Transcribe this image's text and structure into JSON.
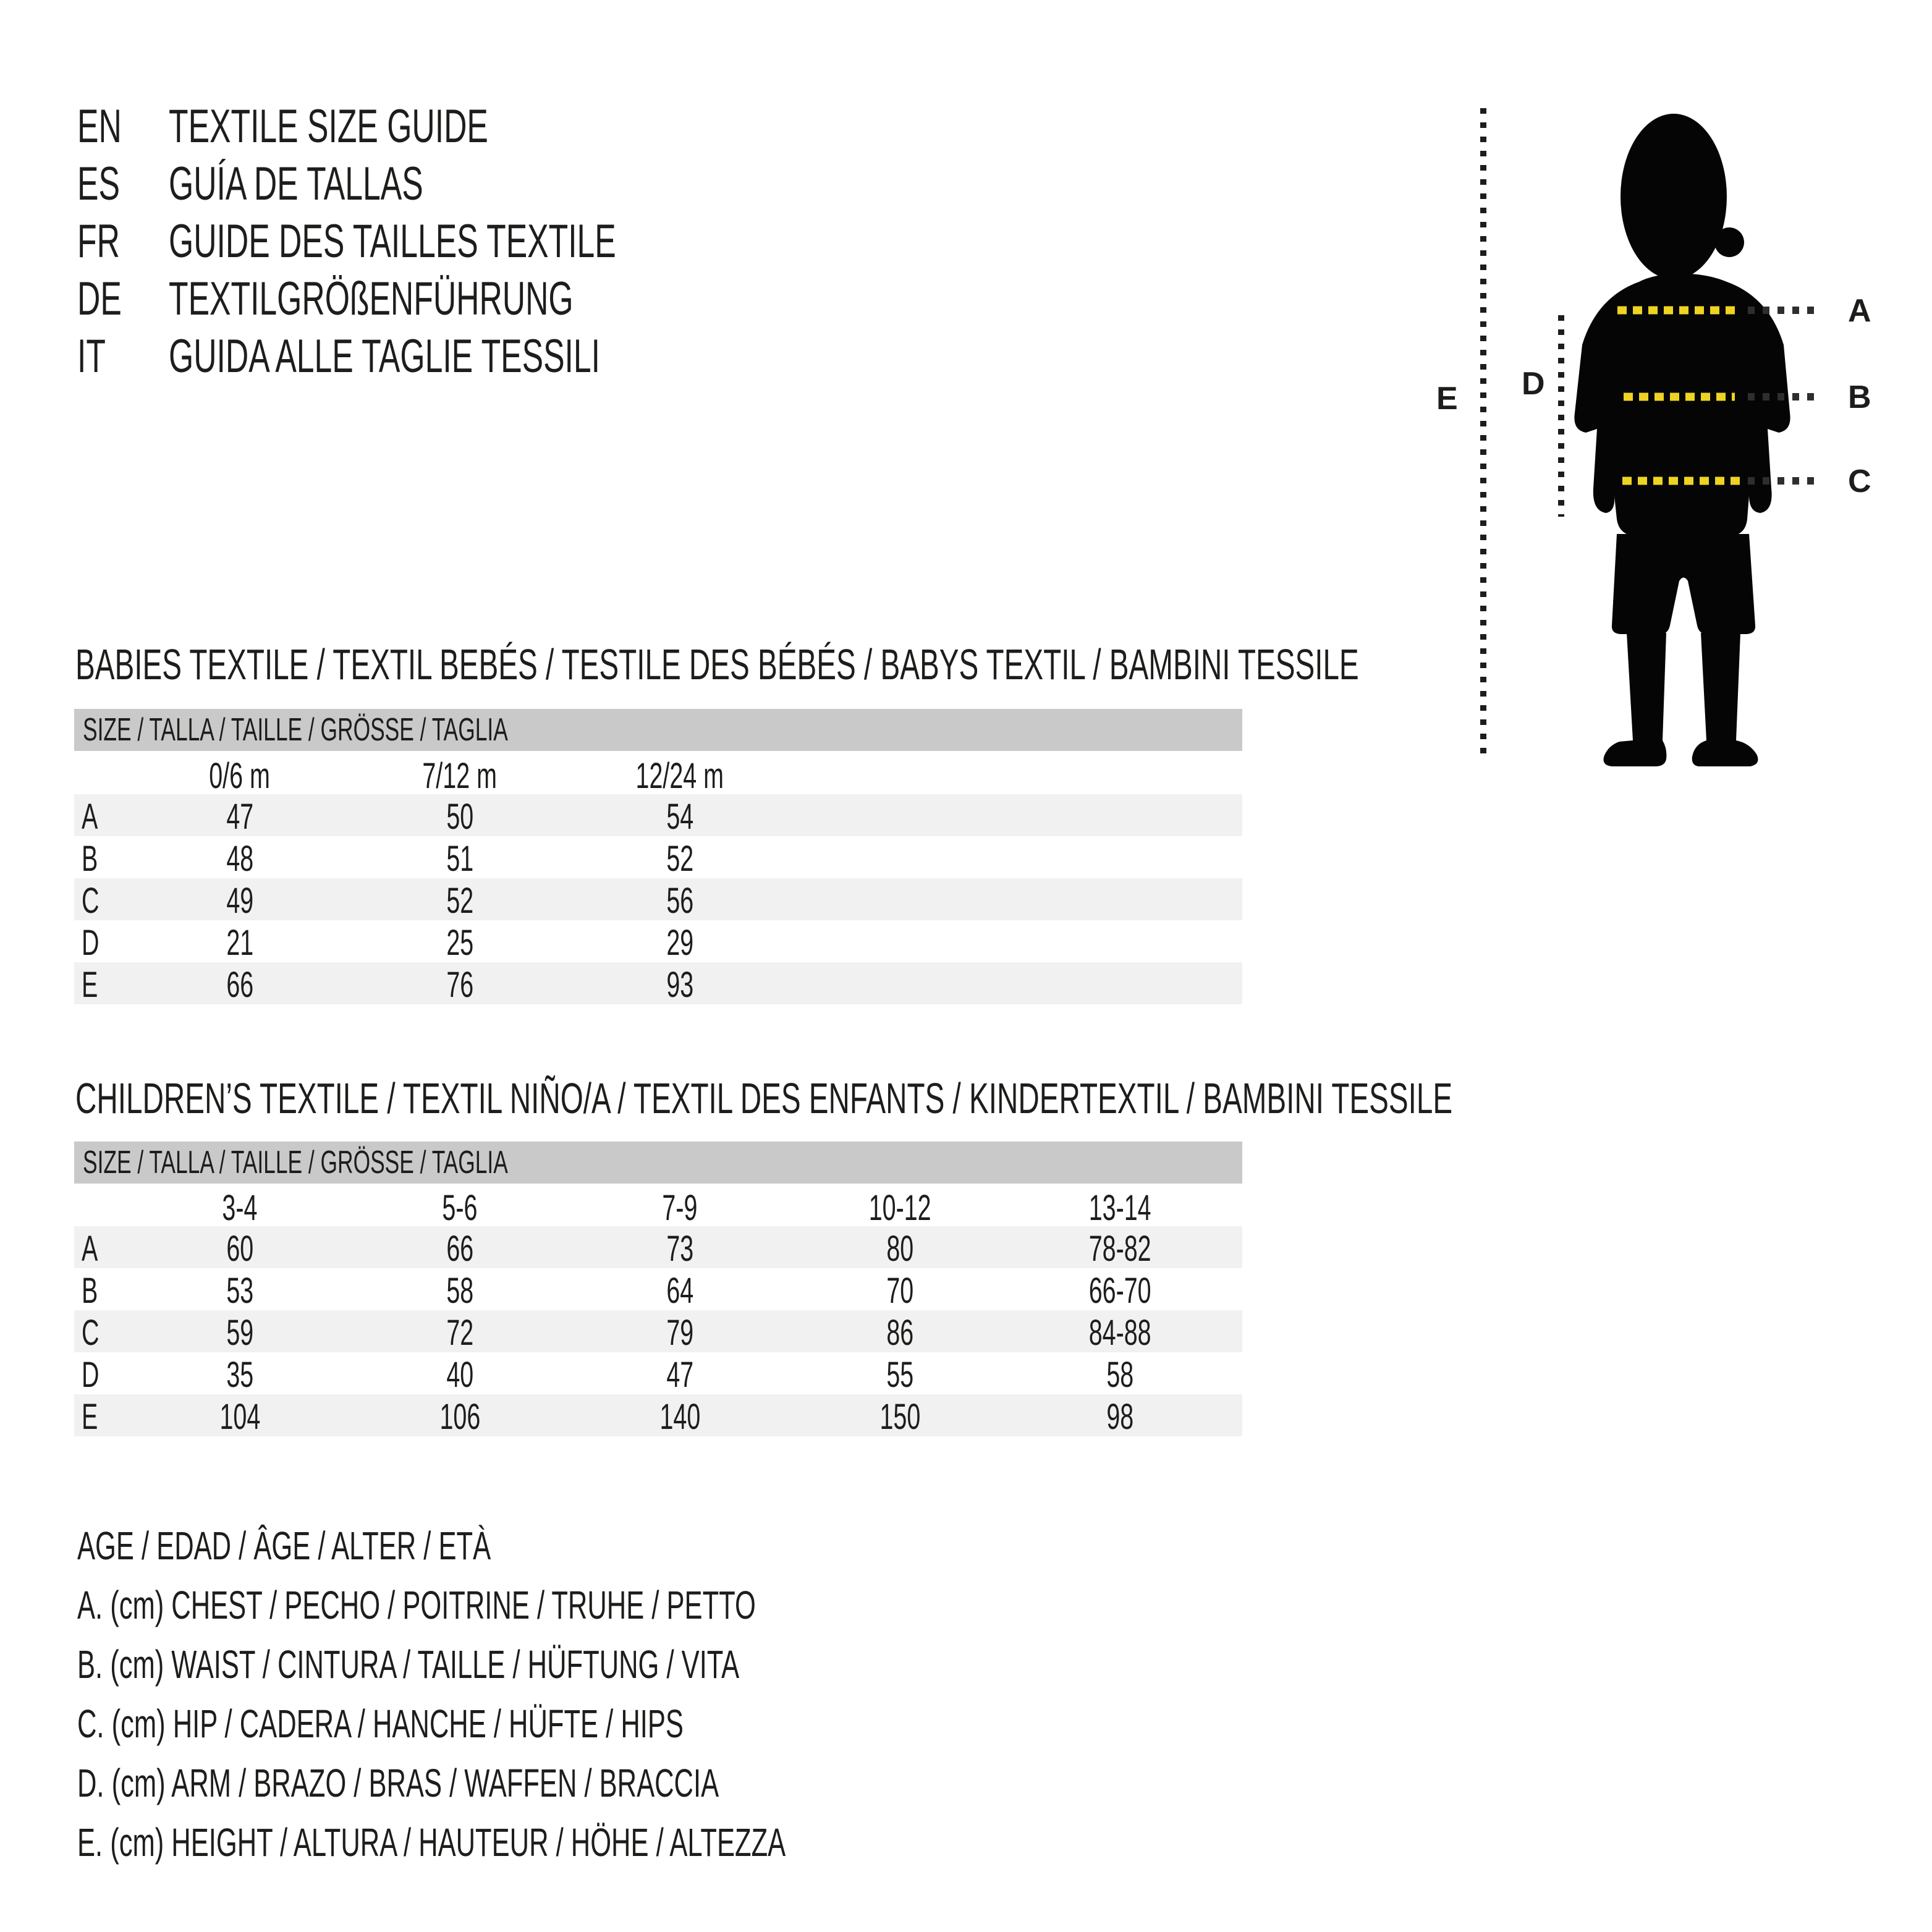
{
  "colors": {
    "text": "#1d1d1b",
    "band_bg": "#c9c9c9",
    "stripe_bg": "#f1f1f1",
    "silhouette": "#050505",
    "dash_yellow": "#eed322",
    "dash_dark": "#2e2e2c"
  },
  "languages": [
    {
      "code": "EN",
      "title": "TEXTILE SIZE GUIDE"
    },
    {
      "code": "ES",
      "title": "GUÍA DE TALLAS"
    },
    {
      "code": "FR",
      "title": "GUIDE DES TAILLES TEXTILE"
    },
    {
      "code": "DE",
      "title": "TEXTILGRÖßENFÜHRUNG"
    },
    {
      "code": "IT",
      "title": "GUIDA ALLE TAGLIE TESSILI"
    }
  ],
  "diagram": {
    "chest_label": "A",
    "waist_label": "B",
    "hip_label": "C",
    "arm_label": "D",
    "height_label": "E"
  },
  "babies_table": {
    "heading": "BABIES TEXTILE / TEXTIL BEBÉS / TESTILE DES BÉBÉS / BABYS TEXTIL / BAMBINI TESSILE",
    "size_header": "SIZE / TALLA / TAILLE / GRÖSSE / TAGLIA",
    "columns": [
      "0/6 m",
      "7/12 m",
      "12/24 m"
    ],
    "rows": [
      {
        "label": "A",
        "values": [
          "47",
          "50",
          "54"
        ]
      },
      {
        "label": "B",
        "values": [
          "48",
          "51",
          "52"
        ]
      },
      {
        "label": "C",
        "values": [
          "49",
          "52",
          "56"
        ]
      },
      {
        "label": "D",
        "values": [
          "21",
          "25",
          "29"
        ]
      },
      {
        "label": "E",
        "values": [
          "66",
          "76",
          "93"
        ]
      }
    ]
  },
  "children_table": {
    "heading": "CHILDREN’S TEXTILE / TEXTIL NIÑO/A / TEXTIL DES ENFANTS / KINDERTEXTIL / BAMBINI TESSILE",
    "size_header": "SIZE / TALLA / TAILLE / GRÖSSE / TAGLIA",
    "columns": [
      "3-4",
      "5-6",
      "7-9",
      "10-12",
      "13-14"
    ],
    "rows": [
      {
        "label": "A",
        "values": [
          "60",
          "66",
          "73",
          "80",
          "78-82"
        ]
      },
      {
        "label": "B",
        "values": [
          "53",
          "58",
          "64",
          "70",
          "66-70"
        ]
      },
      {
        "label": "C",
        "values": [
          "59",
          "72",
          "79",
          "86",
          "84-88"
        ]
      },
      {
        "label": "D",
        "values": [
          "35",
          "40",
          "47",
          "55",
          "58"
        ]
      },
      {
        "label": "E",
        "values": [
          "104",
          "106",
          "140",
          "150",
          "98"
        ]
      }
    ]
  },
  "legend": {
    "lines": [
      "AGE / EDAD / ÂGE / ALTER / ETÀ",
      "A. (cm) CHEST / PECHO / POITRINE / TRUHE / PETTO",
      "B. (cm) WAIST / CINTURA / TAILLE / HÜFTUNG / VITA",
      "C. (cm) HIP / CADERA / HANCHE / HÜFTE / HIPS",
      "D. (cm) ARM / BRAZO / BRAS / WAFFEN / BRACCIA",
      "E. (cm) HEIGHT / ALTURA / HAUTEUR / HÖHE / ALTEZZA"
    ]
  }
}
